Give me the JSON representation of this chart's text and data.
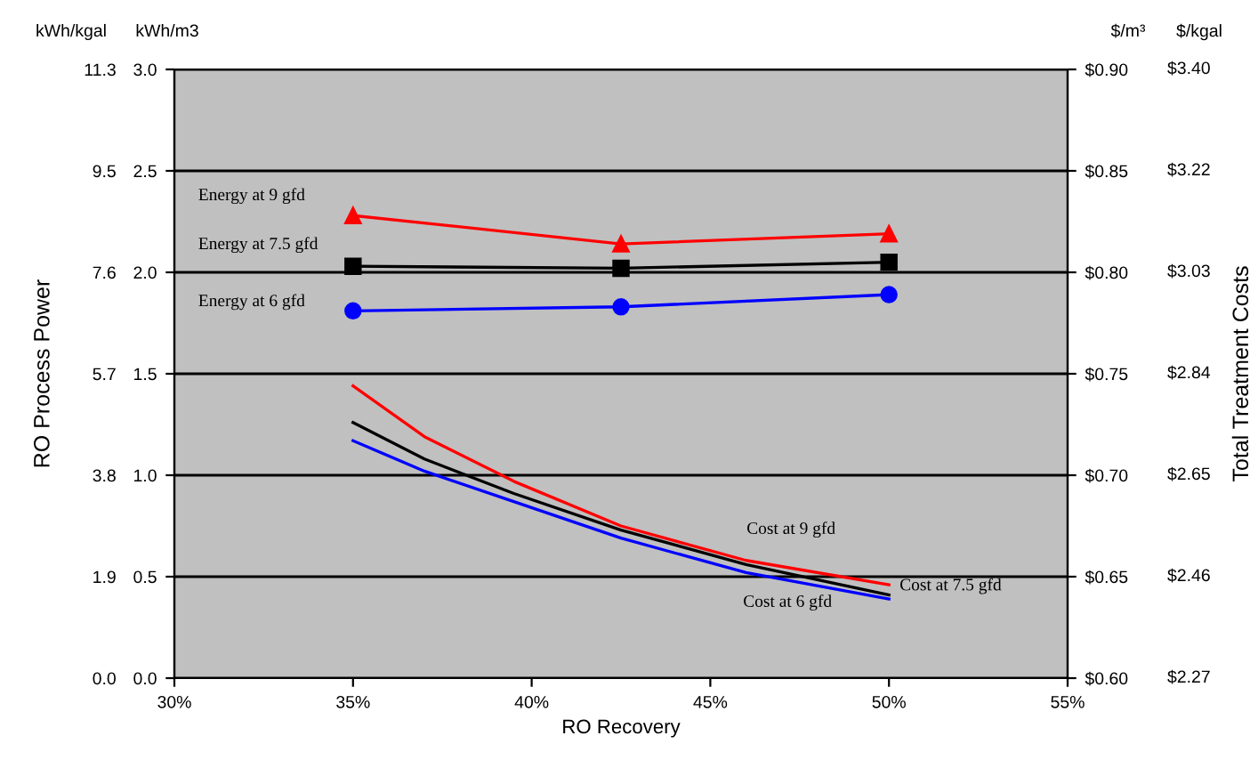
{
  "chart_data": {
    "type": "line",
    "xlabel": "RO Recovery",
    "ylabel": "RO Process Power",
    "y2label": "Total Treatment Costs",
    "xlim": [
      30,
      55
    ],
    "xticks": [
      {
        "value": 30,
        "label": "30%"
      },
      {
        "value": 35,
        "label": "35%"
      },
      {
        "value": 40,
        "label": "40%"
      },
      {
        "value": 45,
        "label": "45%"
      },
      {
        "value": 50,
        "label": "50%"
      },
      {
        "value": 55,
        "label": "55%"
      }
    ],
    "ylim": [
      0,
      3
    ],
    "yticks": [
      {
        "value": 0,
        "label": "0.0"
      },
      {
        "value": 0.5,
        "label": "0.5"
      },
      {
        "value": 1,
        "label": "1.0"
      },
      {
        "value": 1.5,
        "label": "1.5"
      },
      {
        "value": 2,
        "label": "2.0"
      },
      {
        "value": 2.5,
        "label": "2.5"
      },
      {
        "value": 3,
        "label": "3.0"
      }
    ],
    "y3lim": [
      0,
      11.34
    ],
    "y3ticks": [
      {
        "value": 0,
        "label": "0.0"
      },
      {
        "value": 1.89,
        "label": "1.9"
      },
      {
        "value": 3.78,
        "label": "3.8"
      },
      {
        "value": 5.67,
        "label": "5.7"
      },
      {
        "value": 7.56,
        "label": "7.6"
      },
      {
        "value": 9.45,
        "label": "9.5"
      },
      {
        "value": 11.34,
        "label": "11.3"
      }
    ],
    "y2lim": [
      0.6,
      0.9
    ],
    "y2ticks": [
      {
        "value": 0.6,
        "label": "$0.60"
      },
      {
        "value": 0.65,
        "label": "$0.65"
      },
      {
        "value": 0.7,
        "label": "$0.70"
      },
      {
        "value": 0.75,
        "label": "$0.75"
      },
      {
        "value": 0.8,
        "label": "$0.80"
      },
      {
        "value": 0.85,
        "label": "$0.85"
      },
      {
        "value": 0.9,
        "label": "$0.90"
      }
    ],
    "grid": "y",
    "legend": false,
    "annotations": [
      "kWh/kgal",
      "kWh/m3",
      "$/m³",
      "$/kgal",
      "$2.27",
      "$2.46",
      "$2.65",
      "$2.84",
      "$3.03",
      "$3.22",
      "$3.40"
    ],
    "series": [
      {
        "name": "Energy at 9 gfd",
        "color": "#ff0000",
        "marker": "triangle",
        "x": [
          35,
          42.5,
          50
        ],
        "values": [
          2.28,
          2.14,
          2.19
        ]
      },
      {
        "name": "Energy at 7.5 gfd",
        "color": "#000000",
        "marker": "square",
        "x": [
          35,
          42.5,
          50
        ],
        "values": [
          2.03,
          2.02,
          2.05
        ]
      },
      {
        "name": "Energy at 6 gfd",
        "color": "#0000ff",
        "marker": "circle",
        "x": [
          35,
          42.5,
          50
        ],
        "values": [
          1.81,
          1.83,
          1.89
        ]
      },
      {
        "name": "Cost at 9 gfd",
        "color": "#ff0000",
        "axis": "y2",
        "x": [
          35,
          37,
          39.5,
          42.5,
          46,
          50
        ],
        "values": [
          0.744,
          0.719,
          0.697,
          0.675,
          0.658,
          0.646
        ]
      },
      {
        "name": "Cost at 7.5 gfd",
        "color": "#000000",
        "axis": "y2",
        "x": [
          35,
          37,
          39.5,
          42.5,
          46,
          50
        ],
        "values": [
          0.726,
          0.708,
          0.691,
          0.673,
          0.656,
          0.641
        ]
      },
      {
        "name": "Cost at 6 gfd",
        "color": "#0000ff",
        "axis": "y2",
        "x": [
          35,
          37,
          39.5,
          42.5,
          46,
          50
        ],
        "values": [
          0.717,
          0.702,
          0.687,
          0.669,
          0.652,
          0.639
        ]
      }
    ]
  }
}
